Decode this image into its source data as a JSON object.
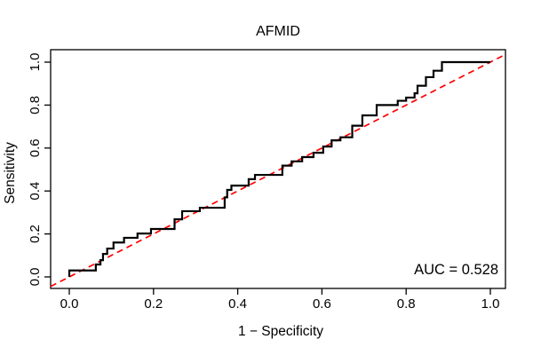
{
  "chart_data": {
    "type": "line",
    "subtype": "roc-step-plot",
    "title": "AFMID",
    "xlabel": "1 − Specificity",
    "ylabel": "Sensitivity",
    "xlim": [
      0.0,
      1.0
    ],
    "ylim": [
      0.0,
      1.0
    ],
    "x_ticks": [
      "0.0",
      "0.2",
      "0.4",
      "0.6",
      "0.8",
      "1.0"
    ],
    "y_ticks": [
      "0.0",
      "0.2",
      "0.4",
      "0.6",
      "0.8",
      "1.0"
    ],
    "grid": false,
    "legend": "none",
    "auc_value": 0.528,
    "annotation_text": "AUC = 0.528",
    "annotation_position": "bottom-right",
    "colors": {
      "roc_curve": "#000000",
      "reference_line": "#ff0000",
      "axis": "#000000",
      "background": "#ffffff"
    },
    "series": [
      {
        "name": "ROC step curve",
        "style": "step-solid",
        "color": "#000000",
        "points": [
          [
            0.0,
            0.0
          ],
          [
            0.0,
            0.03
          ],
          [
            0.063,
            0.03
          ],
          [
            0.063,
            0.058
          ],
          [
            0.074,
            0.058
          ],
          [
            0.074,
            0.078
          ],
          [
            0.08,
            0.078
          ],
          [
            0.08,
            0.107
          ],
          [
            0.09,
            0.107
          ],
          [
            0.09,
            0.132
          ],
          [
            0.105,
            0.132
          ],
          [
            0.105,
            0.16
          ],
          [
            0.13,
            0.16
          ],
          [
            0.13,
            0.182
          ],
          [
            0.162,
            0.182
          ],
          [
            0.162,
            0.202
          ],
          [
            0.194,
            0.202
          ],
          [
            0.194,
            0.223
          ],
          [
            0.25,
            0.223
          ],
          [
            0.25,
            0.268
          ],
          [
            0.268,
            0.268
          ],
          [
            0.268,
            0.306
          ],
          [
            0.31,
            0.306
          ],
          [
            0.31,
            0.322
          ],
          [
            0.369,
            0.322
          ],
          [
            0.369,
            0.37
          ],
          [
            0.375,
            0.37
          ],
          [
            0.375,
            0.405
          ],
          [
            0.385,
            0.405
          ],
          [
            0.385,
            0.425
          ],
          [
            0.426,
            0.425
          ],
          [
            0.426,
            0.455
          ],
          [
            0.441,
            0.455
          ],
          [
            0.441,
            0.475
          ],
          [
            0.506,
            0.475
          ],
          [
            0.506,
            0.518
          ],
          [
            0.528,
            0.518
          ],
          [
            0.528,
            0.538
          ],
          [
            0.553,
            0.538
          ],
          [
            0.553,
            0.558
          ],
          [
            0.58,
            0.558
          ],
          [
            0.58,
            0.578
          ],
          [
            0.603,
            0.578
          ],
          [
            0.603,
            0.607
          ],
          [
            0.623,
            0.607
          ],
          [
            0.623,
            0.636
          ],
          [
            0.644,
            0.636
          ],
          [
            0.644,
            0.65
          ],
          [
            0.672,
            0.65
          ],
          [
            0.672,
            0.704
          ],
          [
            0.696,
            0.704
          ],
          [
            0.696,
            0.752
          ],
          [
            0.73,
            0.752
          ],
          [
            0.73,
            0.8
          ],
          [
            0.78,
            0.8
          ],
          [
            0.78,
            0.82
          ],
          [
            0.8,
            0.82
          ],
          [
            0.8,
            0.835
          ],
          [
            0.82,
            0.835
          ],
          [
            0.82,
            0.855
          ],
          [
            0.827,
            0.855
          ],
          [
            0.827,
            0.89
          ],
          [
            0.847,
            0.89
          ],
          [
            0.847,
            0.93
          ],
          [
            0.865,
            0.93
          ],
          [
            0.865,
            0.96
          ],
          [
            0.885,
            0.96
          ],
          [
            0.885,
            1.0
          ],
          [
            1.0,
            1.0
          ]
        ]
      },
      {
        "name": "Chance diagonal",
        "style": "dashed-diagonal",
        "color": "#ff0000",
        "points": [
          [
            0.0,
            0.0
          ],
          [
            1.0,
            1.0
          ]
        ]
      }
    ]
  }
}
